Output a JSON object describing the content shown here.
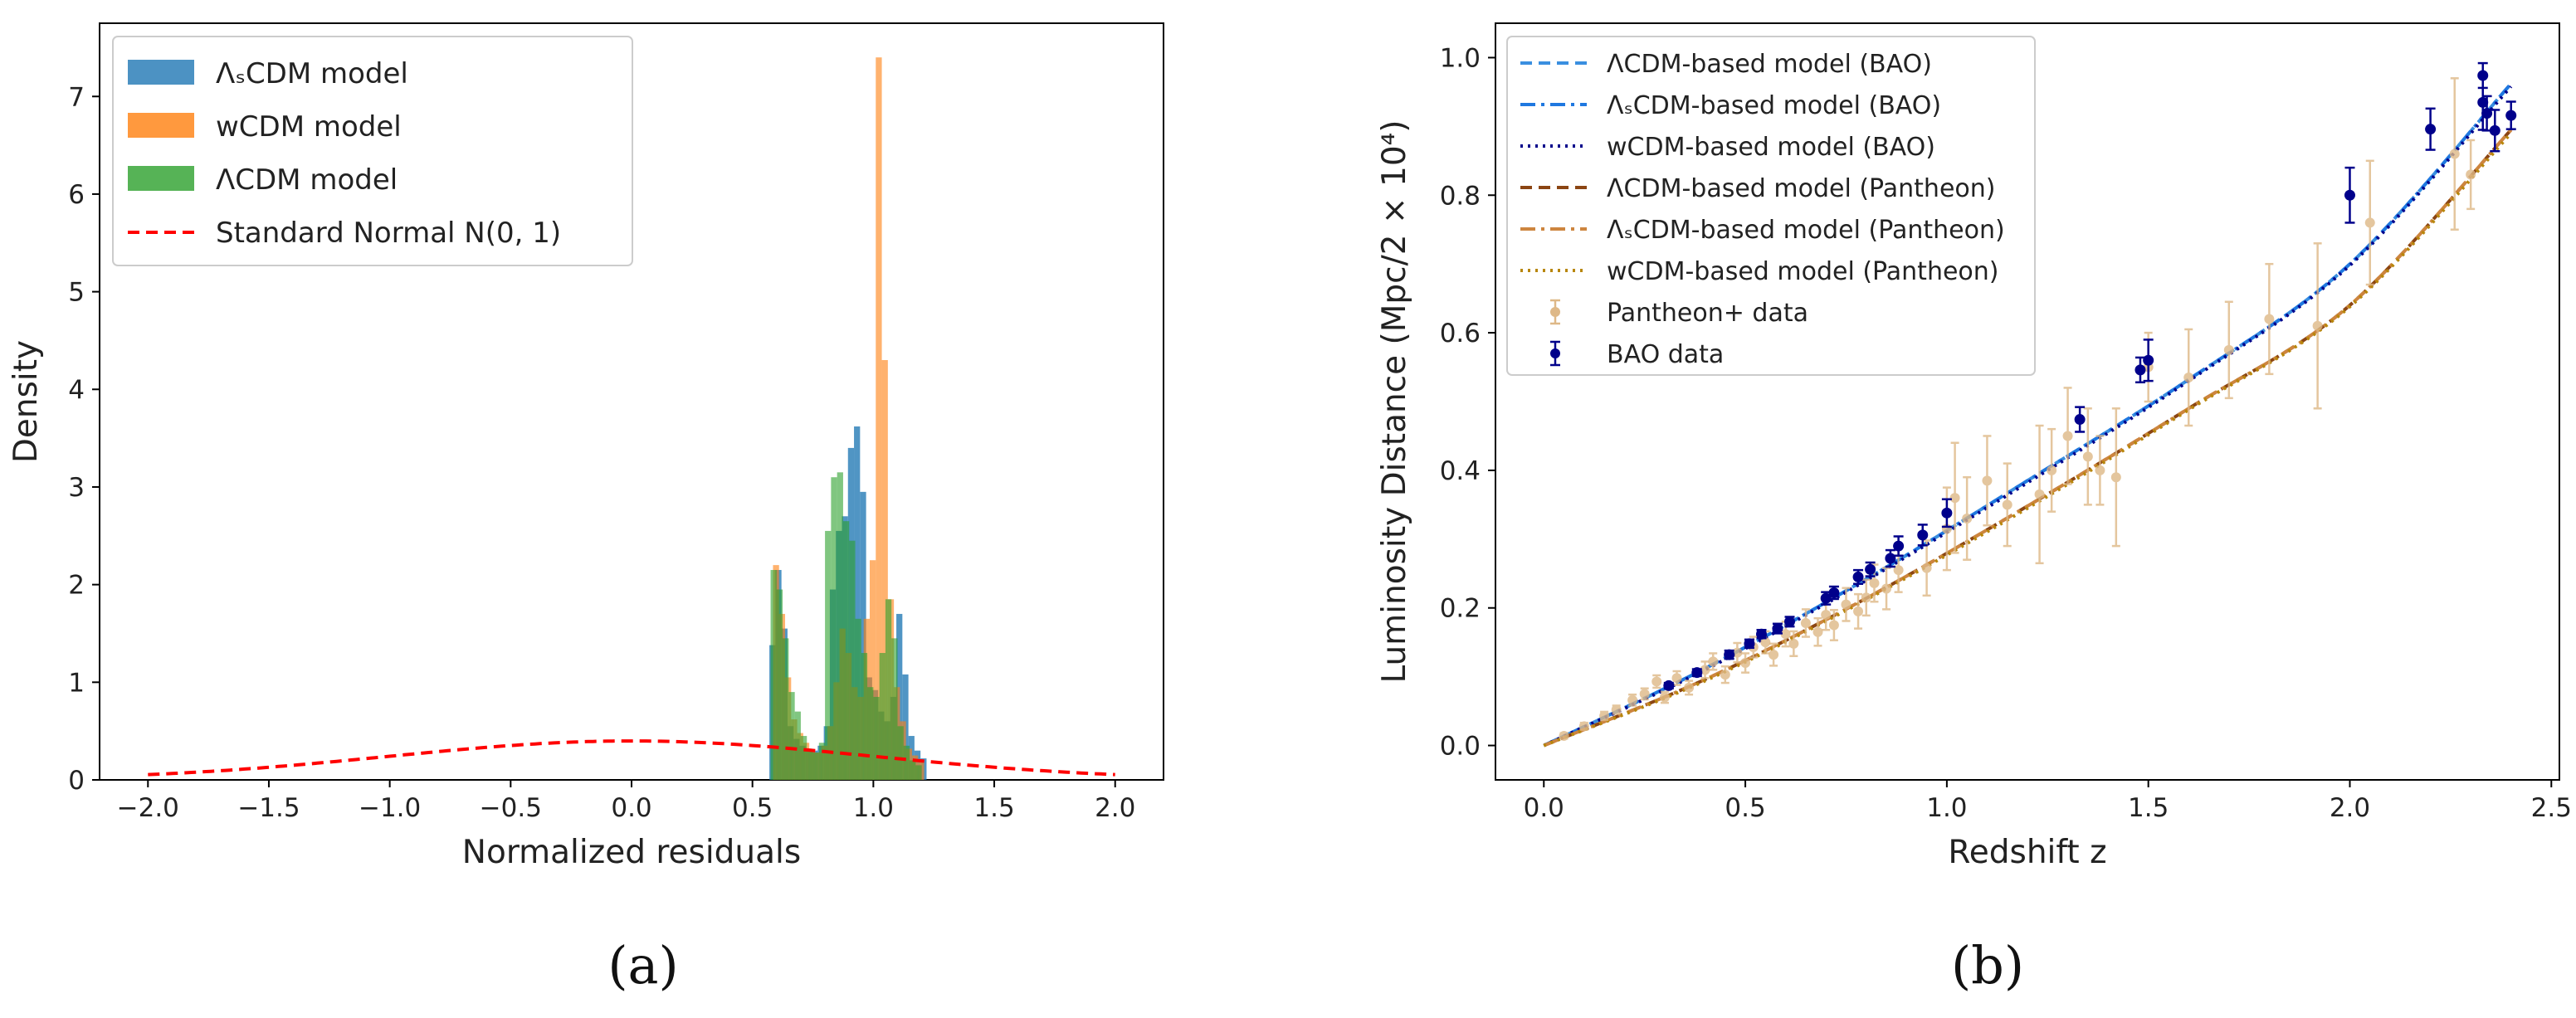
{
  "figure": {
    "panel_labels": [
      "(a)",
      "(b)"
    ]
  },
  "chart_data": [
    {
      "type": "histogram",
      "panel": "(a)",
      "title": "",
      "xlabel": "Normalized residuals",
      "ylabel": "Density",
      "xlim": [
        -2.2,
        2.2
      ],
      "ylim": [
        0,
        7.75
      ],
      "xticks": [
        -2.0,
        -1.5,
        -1.0,
        -0.5,
        0.0,
        0.5,
        1.0,
        1.5,
        2.0
      ],
      "xtick_labels": [
        "−2.0",
        "−1.5",
        "−1.0",
        "−0.5",
        "0.0",
        "0.5",
        "1.0",
        "1.5",
        "2.0"
      ],
      "yticks": [
        0,
        1,
        2,
        3,
        4,
        5,
        6,
        7
      ],
      "legend_position": "upper-left",
      "bin_width": 0.025,
      "series": [
        {
          "name": "ΛₛCDM model",
          "color": "#1f77b4",
          "opacity": 0.78,
          "edges_start": 0.57,
          "density": [
            1.38,
            2.15,
            1.55,
            0.55,
            0.42,
            0.35,
            0.32,
            0.3,
            0.35,
            0.55,
            1.95,
            2.55,
            2.7,
            3.4,
            3.62,
            2.95,
            1.05,
            0.92,
            0.7,
            0.6,
            0.85,
            1.7,
            1.08,
            0.45,
            0.3,
            0.22
          ]
        },
        {
          "name": "wCDM model",
          "color": "#ff7f0e",
          "opacity": 0.6,
          "edges_start": 0.585,
          "density": [
            2.2,
            1.7,
            1.05,
            0.62,
            0.48,
            0.38,
            0.3,
            0.28,
            0.35,
            0.55,
            1.0,
            1.55,
            1.3,
            0.95,
            0.85,
            1.65,
            2.25,
            7.4,
            4.3,
            1.85,
            0.95,
            0.6,
            0.32,
            0.25,
            0.18
          ]
        },
        {
          "name": "ΛCDM model",
          "color": "#2ca02c",
          "opacity": 0.6,
          "edges_start": 0.575,
          "density": [
            2.15,
            1.95,
            1.45,
            0.9,
            0.7,
            0.45,
            0.3,
            0.28,
            0.38,
            2.55,
            3.1,
            3.15,
            2.65,
            2.45,
            1.65,
            1.3,
            0.95,
            0.85,
            1.3,
            1.85,
            1.45,
            0.55,
            0.35,
            0.2,
            0.15
          ]
        }
      ],
      "reference_curve": {
        "name": "Standard Normal N(0, 1)",
        "label": "Standard Normal ",
        "math": "N(0, 1)",
        "color": "#ff0000",
        "style": "dashed",
        "x_range": [
          -2.0,
          2.0
        ]
      },
      "legend": {
        "entries": [
          {
            "text": "ΛₛCDM model",
            "color": "#1f77b4",
            "kind": "patch"
          },
          {
            "text": "wCDM model",
            "color": "#ff7f0e",
            "kind": "patch"
          },
          {
            "text": "ΛCDM model",
            "color": "#2ca02c",
            "kind": "patch"
          },
          {
            "text": "Standard Normal N(0, 1)",
            "color": "#ff0000",
            "kind": "dashed"
          }
        ]
      }
    },
    {
      "type": "scatter+line",
      "panel": "(b)",
      "title": "",
      "xlabel": "Redshift z",
      "ylabel": "Luminosity Distance (Mpc/2 × 10⁴)",
      "xlim": [
        -0.12,
        2.52
      ],
      "ylim": [
        -0.05,
        1.05
      ],
      "xticks": [
        0.0,
        0.5,
        1.0,
        1.5,
        2.0,
        2.5
      ],
      "xtick_labels": [
        "0.0",
        "0.5",
        "1.0",
        "1.5",
        "2.0",
        "2.5"
      ],
      "yticks": [
        0.0,
        0.2,
        0.4,
        0.6,
        0.8,
        1.0
      ],
      "ytick_labels": [
        "0.0",
        "0.2",
        "0.4",
        "0.6",
        "0.8",
        "1.0"
      ],
      "legend_position": "upper-left",
      "model_curves": [
        {
          "name": "ΛCDM-based model (BAO)",
          "color": "#3a8fe0",
          "style": "dashed",
          "x": [
            0,
            0.4,
            0.8,
            1.2,
            1.6,
            2.0,
            2.4
          ],
          "y": [
            0.0,
            0.112,
            0.242,
            0.385,
            0.532,
            0.7,
            0.962
          ]
        },
        {
          "name": "ΛₛCDM-based model (BAO)",
          "color": "#1f78e0",
          "style": "dashdot",
          "x": [
            0,
            0.4,
            0.8,
            1.2,
            1.6,
            2.0,
            2.4
          ],
          "y": [
            0.0,
            0.112,
            0.242,
            0.385,
            0.532,
            0.7,
            0.962
          ]
        },
        {
          "name": "wCDM-based model (BAO)",
          "color": "#00008b",
          "style": "dotted",
          "x": [
            0,
            0.4,
            0.8,
            1.2,
            1.6,
            2.0,
            2.4
          ],
          "y": [
            0.0,
            0.11,
            0.24,
            0.382,
            0.53,
            0.698,
            0.958
          ]
        },
        {
          "name": "ΛCDM-based model (Pantheon)",
          "color": "#8b4513",
          "style": "dashed",
          "x": [
            0,
            0.4,
            0.8,
            1.2,
            1.6,
            2.0,
            2.4
          ],
          "y": [
            0.0,
            0.096,
            0.214,
            0.348,
            0.49,
            0.64,
            0.895
          ]
        },
        {
          "name": "ΛₛCDM-based model (Pantheon)",
          "color": "#cd853f",
          "style": "dashdot",
          "x": [
            0,
            0.4,
            0.8,
            1.2,
            1.6,
            2.0,
            2.4
          ],
          "y": [
            0.0,
            0.096,
            0.214,
            0.348,
            0.49,
            0.64,
            0.895
          ]
        },
        {
          "name": "wCDM-based model (Pantheon)",
          "color": "#b8860b",
          "style": "dotted",
          "x": [
            0,
            0.4,
            0.8,
            1.2,
            1.6,
            2.0,
            2.4
          ],
          "y": [
            0.0,
            0.094,
            0.212,
            0.345,
            0.488,
            0.638,
            0.89
          ]
        }
      ],
      "pantheon_data": {
        "name": "Pantheon+ data",
        "color": "#deb887",
        "points": [
          [
            0.05,
            0.014,
            0.004
          ],
          [
            0.1,
            0.028,
            0.005
          ],
          [
            0.15,
            0.043,
            0.006
          ],
          [
            0.18,
            0.052,
            0.006
          ],
          [
            0.22,
            0.066,
            0.008
          ],
          [
            0.25,
            0.075,
            0.008
          ],
          [
            0.28,
            0.093,
            0.009
          ],
          [
            0.3,
            0.07,
            0.008
          ],
          [
            0.33,
            0.098,
            0.01
          ],
          [
            0.36,
            0.084,
            0.01
          ],
          [
            0.4,
            0.11,
            0.012
          ],
          [
            0.42,
            0.122,
            0.012
          ],
          [
            0.45,
            0.103,
            0.012
          ],
          [
            0.48,
            0.135,
            0.014
          ],
          [
            0.5,
            0.12,
            0.014
          ],
          [
            0.52,
            0.143,
            0.015
          ],
          [
            0.55,
            0.15,
            0.016
          ],
          [
            0.57,
            0.132,
            0.016
          ],
          [
            0.6,
            0.162,
            0.018
          ],
          [
            0.62,
            0.148,
            0.018
          ],
          [
            0.65,
            0.178,
            0.02
          ],
          [
            0.68,
            0.165,
            0.02
          ],
          [
            0.7,
            0.19,
            0.022
          ],
          [
            0.72,
            0.175,
            0.022
          ],
          [
            0.75,
            0.205,
            0.024
          ],
          [
            0.78,
            0.195,
            0.025
          ],
          [
            0.8,
            0.215,
            0.026
          ],
          [
            0.82,
            0.236,
            0.027
          ],
          [
            0.85,
            0.228,
            0.03
          ],
          [
            0.88,
            0.255,
            0.032
          ],
          [
            0.95,
            0.258,
            0.04
          ],
          [
            1.0,
            0.315,
            0.06
          ],
          [
            1.02,
            0.36,
            0.08
          ],
          [
            1.05,
            0.33,
            0.06
          ],
          [
            1.1,
            0.385,
            0.065
          ],
          [
            1.15,
            0.35,
            0.06
          ],
          [
            1.23,
            0.365,
            0.1
          ],
          [
            1.26,
            0.4,
            0.06
          ],
          [
            1.3,
            0.45,
            0.07
          ],
          [
            1.35,
            0.42,
            0.07
          ],
          [
            1.38,
            0.4,
            0.05
          ],
          [
            1.42,
            0.39,
            0.1
          ],
          [
            1.5,
            0.55,
            0.05
          ],
          [
            1.6,
            0.535,
            0.07
          ],
          [
            1.7,
            0.575,
            0.07
          ],
          [
            1.8,
            0.62,
            0.08
          ],
          [
            1.92,
            0.61,
            0.12
          ],
          [
            2.05,
            0.76,
            0.09
          ],
          [
            2.26,
            0.86,
            0.11
          ],
          [
            2.3,
            0.83,
            0.05
          ]
        ]
      },
      "bao_data": {
        "name": "BAO data",
        "color": "#00008b",
        "points": [
          [
            0.31,
            0.087,
            0.004
          ],
          [
            0.38,
            0.106,
            0.005
          ],
          [
            0.46,
            0.132,
            0.006
          ],
          [
            0.51,
            0.148,
            0.006
          ],
          [
            0.54,
            0.162,
            0.006
          ],
          [
            0.58,
            0.17,
            0.007
          ],
          [
            0.61,
            0.18,
            0.007
          ],
          [
            0.7,
            0.214,
            0.009
          ],
          [
            0.72,
            0.222,
            0.009
          ],
          [
            0.78,
            0.245,
            0.01
          ],
          [
            0.81,
            0.256,
            0.01
          ],
          [
            0.86,
            0.272,
            0.012
          ],
          [
            0.88,
            0.29,
            0.014
          ],
          [
            0.94,
            0.306,
            0.015
          ],
          [
            1.0,
            0.338,
            0.02
          ],
          [
            1.33,
            0.474,
            0.018
          ],
          [
            1.48,
            0.546,
            0.018
          ],
          [
            1.5,
            0.56,
            0.03
          ],
          [
            2.0,
            0.8,
            0.04
          ],
          [
            2.2,
            0.896,
            0.03
          ],
          [
            2.33,
            0.974,
            0.018
          ],
          [
            2.33,
            0.935,
            0.04
          ],
          [
            2.34,
            0.919,
            0.025
          ],
          [
            2.36,
            0.894,
            0.03
          ],
          [
            2.4,
            0.916,
            0.02
          ]
        ]
      },
      "legend": {
        "entries": [
          {
            "text": "ΛCDM-based model (BAO)",
            "color": "#3a8fe0",
            "kind": "dashed"
          },
          {
            "text": "ΛₛCDM-based model (BAO)",
            "color": "#1f78e0",
            "kind": "dashdot"
          },
          {
            "text": "wCDM-based model (BAO)",
            "color": "#00008b",
            "kind": "dotted"
          },
          {
            "text": "ΛCDM-based model (Pantheon)",
            "color": "#8b4513",
            "kind": "dashed"
          },
          {
            "text": "ΛₛCDM-based model (Pantheon)",
            "color": "#cd853f",
            "kind": "dashdot"
          },
          {
            "text": "wCDM-based model (Pantheon)",
            "color": "#b8860b",
            "kind": "dotted"
          },
          {
            "text": "Pantheon+ data",
            "color": "#deb887",
            "kind": "errorbar"
          },
          {
            "text": "BAO data",
            "color": "#00008b",
            "kind": "errorbar"
          }
        ]
      }
    }
  ]
}
